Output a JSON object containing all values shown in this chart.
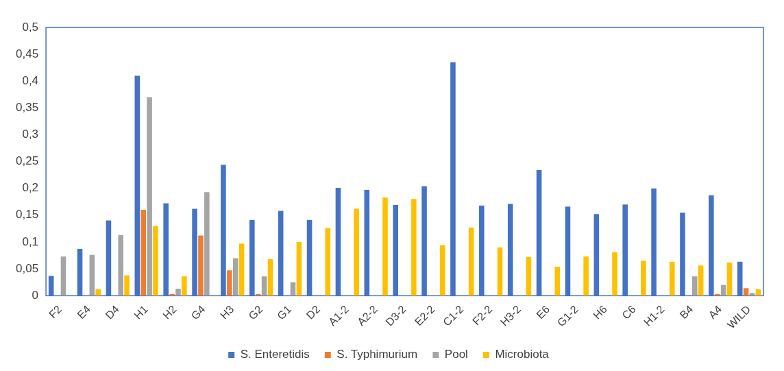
{
  "chart_data": {
    "type": "bar",
    "categories": [
      "F2",
      "E4",
      "D4",
      "H1",
      "H2",
      "G4",
      "H3",
      "G2",
      "G1",
      "D2",
      "A1-2",
      "A2-2",
      "D3-2",
      "E2-2",
      "C1-2",
      "F2-2",
      "H3-2",
      "E6",
      "G1-2",
      "H6",
      "C6",
      "H1-2",
      "B4",
      "A4",
      "WILD"
    ],
    "series": [
      {
        "name": "S. Enteretidis",
        "color": "#4472c4",
        "values": [
          0.037,
          0.087,
          0.14,
          0.41,
          0.172,
          0.162,
          0.244,
          0.141,
          0.158,
          0.141,
          0.201,
          0.197,
          0.169,
          0.204,
          0.435,
          0.168,
          0.171,
          0.234,
          0.166,
          0.152,
          0.17,
          0.2,
          0.155,
          0.187,
          0.063
        ]
      },
      {
        "name": "S. Typhimurium",
        "color": "#ed7d31",
        "values": [
          0,
          0,
          0,
          0.16,
          0.003,
          0.112,
          0.047,
          0.003,
          0,
          0,
          0,
          0,
          0,
          0,
          0,
          0,
          0,
          0,
          0,
          0,
          0,
          0,
          0,
          0.003,
          0.014
        ]
      },
      {
        "name": "Pool",
        "color": "#a5a5a5",
        "values": [
          0.073,
          0.076,
          0.113,
          0.37,
          0.013,
          0.193,
          0.07,
          0.036,
          0.025,
          0,
          0,
          0,
          0,
          0,
          0,
          0,
          0,
          0,
          0,
          0,
          0,
          0,
          0.036,
          0.02,
          0.005
        ]
      },
      {
        "name": "Microbiota",
        "color": "#ffc000",
        "values": [
          0,
          0.012,
          0.038,
          0.13,
          0.036,
          0,
          0.097,
          0.068,
          0.1,
          0.126,
          0.162,
          0.183,
          0.18,
          0.094,
          0.127,
          0.09,
          0.072,
          0.054,
          0.073,
          0.081,
          0.065,
          0.063,
          0.056,
          0.062,
          0.012
        ]
      }
    ],
    "ylim": [
      0,
      0.5
    ],
    "yticks": [
      {
        "value": 0,
        "label": "0"
      },
      {
        "value": 0.05,
        "label": "0,05"
      },
      {
        "value": 0.1,
        "label": "0,1"
      },
      {
        "value": 0.15,
        "label": "0,15"
      },
      {
        "value": 0.2,
        "label": "0,2"
      },
      {
        "value": 0.25,
        "label": "0,25"
      },
      {
        "value": 0.3,
        "label": "0,3"
      },
      {
        "value": 0.35,
        "label": "0,35"
      },
      {
        "value": 0.4,
        "label": "0,4"
      },
      {
        "value": 0.45,
        "label": "0,45"
      },
      {
        "value": 0.5,
        "label": "0,5"
      }
    ],
    "grid": false,
    "legend": "bottom"
  }
}
